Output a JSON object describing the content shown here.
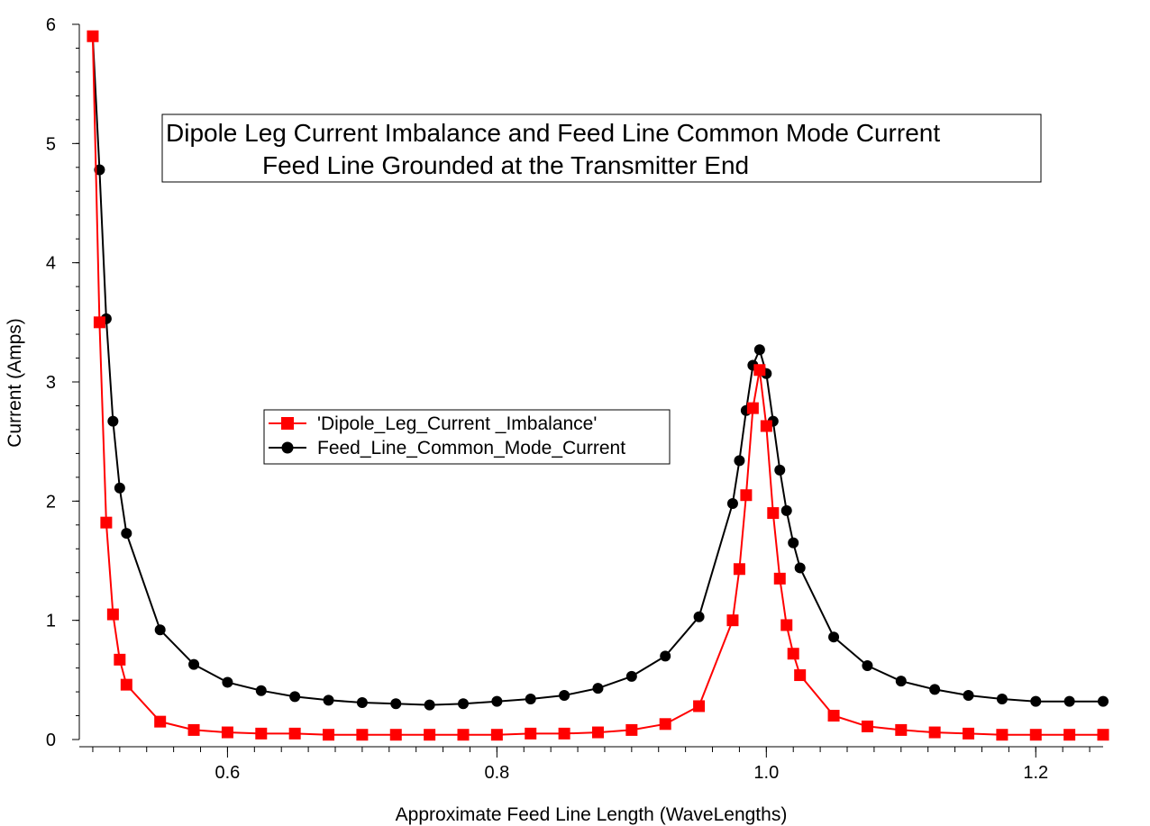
{
  "chart_data": {
    "type": "line",
    "title_lines": [
      "Dipole Leg Current Imbalance and Feed Line Common Mode Current",
      "Feed Line Grounded at the Transmitter End"
    ],
    "xlabel": "Approximate Feed Line Length (WaveLengths)",
    "ylabel": "Current (Amps)",
    "xlim": [
      0.49,
      1.25
    ],
    "ylim": [
      0,
      6
    ],
    "x_ticks": [
      {
        "value": 0.6,
        "label": "0.6"
      },
      {
        "value": 0.8,
        "label": "0.8"
      },
      {
        "value": 1.0,
        "label": "1.0"
      },
      {
        "value": 1.2,
        "label": "1.2"
      }
    ],
    "y_ticks": [
      {
        "value": 0,
        "label": "0"
      },
      {
        "value": 1,
        "label": "1"
      },
      {
        "value": 2,
        "label": "2"
      },
      {
        "value": 3,
        "label": "3"
      },
      {
        "value": 4,
        "label": "4"
      },
      {
        "value": 5,
        "label": "5"
      },
      {
        "value": 6,
        "label": "6"
      }
    ],
    "grid": false,
    "legend_position": "center-left",
    "series": [
      {
        "name": "'Dipole_Leg_Current _Imbalance'",
        "color": "#ff0000",
        "marker": "square",
        "x": [
          0.5,
          0.505,
          0.51,
          0.515,
          0.52,
          0.525,
          0.55,
          0.575,
          0.6,
          0.625,
          0.65,
          0.675,
          0.7,
          0.725,
          0.75,
          0.775,
          0.8,
          0.825,
          0.85,
          0.875,
          0.9,
          0.925,
          0.95,
          0.975,
          0.98,
          0.985,
          0.99,
          0.995,
          1.0,
          1.005,
          1.01,
          1.015,
          1.02,
          1.025,
          1.05,
          1.075,
          1.1,
          1.125,
          1.15,
          1.175,
          1.2,
          1.225,
          1.25
        ],
        "y": [
          5.9,
          3.5,
          1.82,
          1.05,
          0.67,
          0.46,
          0.15,
          0.08,
          0.06,
          0.05,
          0.05,
          0.04,
          0.04,
          0.04,
          0.04,
          0.04,
          0.04,
          0.05,
          0.05,
          0.06,
          0.08,
          0.13,
          0.28,
          1.0,
          1.43,
          2.05,
          2.78,
          3.1,
          2.63,
          1.9,
          1.35,
          0.96,
          0.72,
          0.54,
          0.2,
          0.11,
          0.08,
          0.06,
          0.05,
          0.04,
          0.04,
          0.04,
          0.04
        ]
      },
      {
        "name": "Feed_Line_Common_Mode_Current",
        "color": "#000000",
        "marker": "circle",
        "x": [
          0.5,
          0.505,
          0.51,
          0.515,
          0.52,
          0.525,
          0.55,
          0.575,
          0.6,
          0.625,
          0.65,
          0.675,
          0.7,
          0.725,
          0.75,
          0.775,
          0.8,
          0.825,
          0.85,
          0.875,
          0.9,
          0.925,
          0.95,
          0.975,
          0.98,
          0.985,
          0.99,
          0.995,
          1.0,
          1.005,
          1.01,
          1.015,
          1.02,
          1.025,
          1.05,
          1.075,
          1.1,
          1.125,
          1.15,
          1.175,
          1.2,
          1.225,
          1.25
        ],
        "y": [
          5.9,
          4.78,
          3.53,
          2.67,
          2.11,
          1.73,
          0.92,
          0.63,
          0.48,
          0.41,
          0.36,
          0.33,
          0.31,
          0.3,
          0.29,
          0.3,
          0.32,
          0.34,
          0.37,
          0.43,
          0.53,
          0.7,
          1.03,
          1.98,
          2.34,
          2.76,
          3.14,
          3.27,
          3.07,
          2.67,
          2.26,
          1.92,
          1.65,
          1.44,
          0.86,
          0.62,
          0.49,
          0.42,
          0.37,
          0.34,
          0.32,
          0.32,
          0.32
        ]
      }
    ]
  }
}
